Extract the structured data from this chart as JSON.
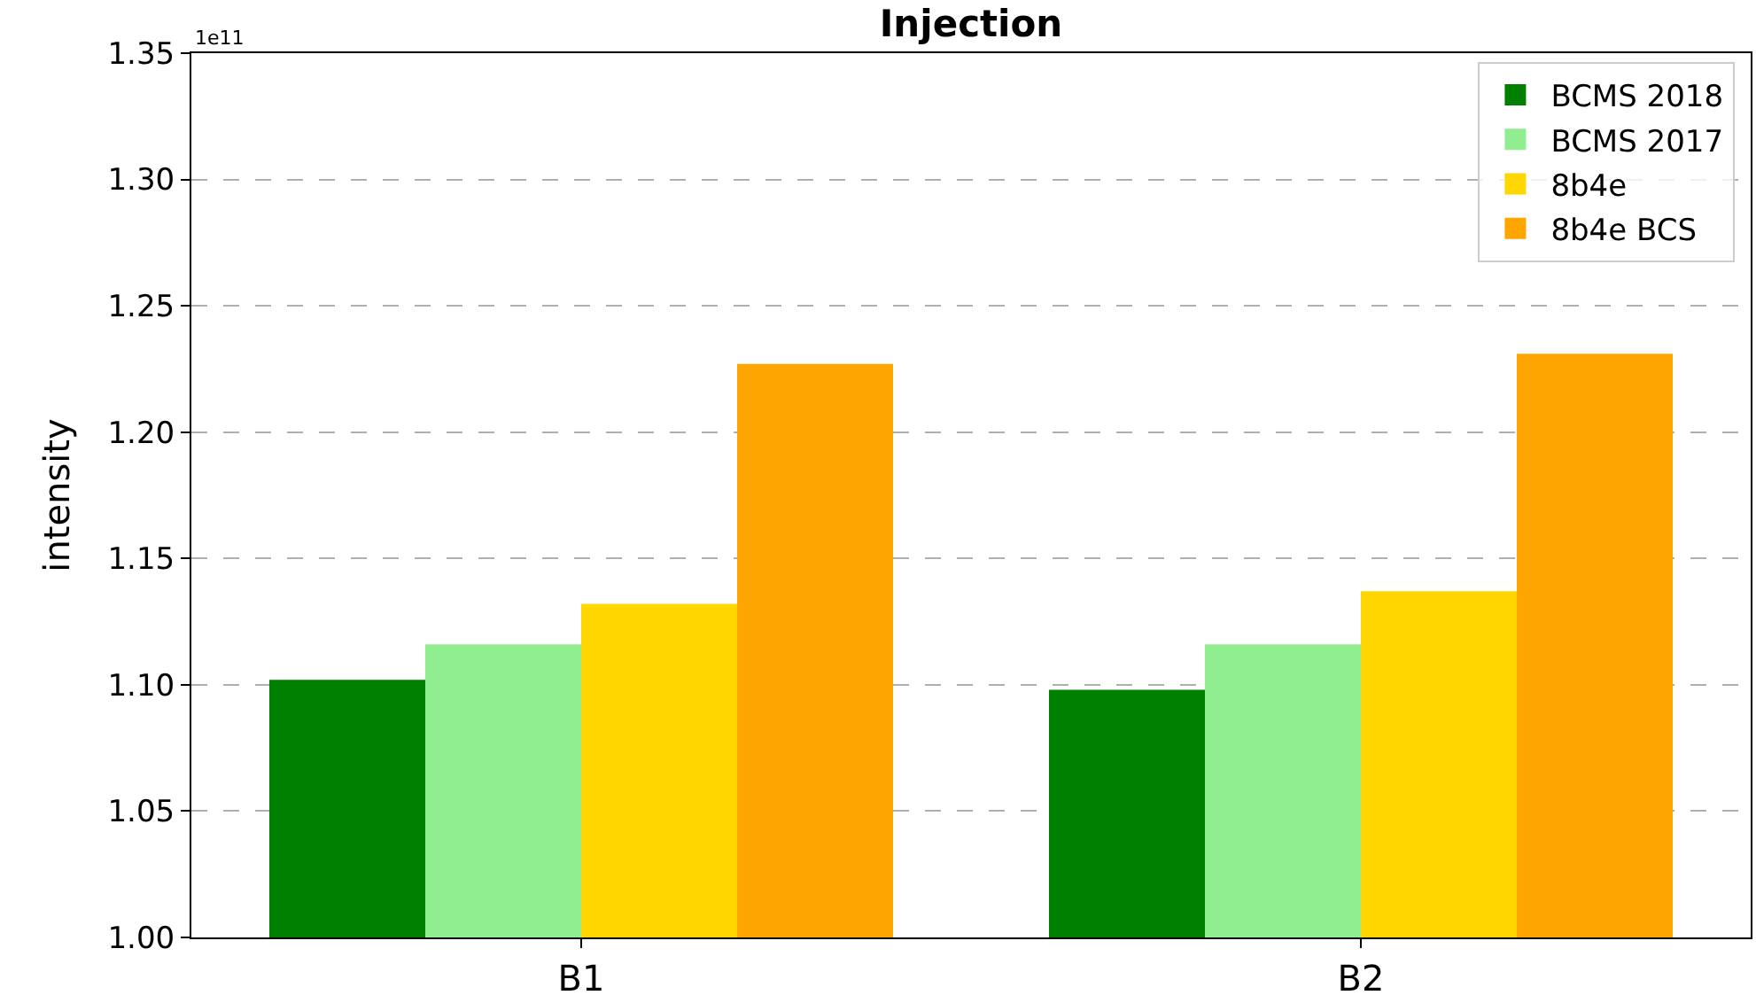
{
  "chart_data": {
    "type": "bar",
    "title": "Injection",
    "ylabel": "intensity",
    "categories": [
      "B1",
      "B2"
    ],
    "series": [
      {
        "name": "BCMS 2018",
        "color": "#008000",
        "values": [
          1.102,
          1.098
        ]
      },
      {
        "name": "BCMS 2017",
        "color": "#90ee90",
        "values": [
          1.116,
          1.116
        ]
      },
      {
        "name": "8b4e",
        "color": "#ffd700",
        "values": [
          1.132,
          1.137
        ]
      },
      {
        "name": "8b4e BCS",
        "color": "#ffa500",
        "values": [
          1.227,
          1.231
        ]
      }
    ],
    "ylim": [
      1.0,
      1.35
    ],
    "yticks": [
      {
        "value": 1.0,
        "label": "1.00"
      },
      {
        "value": 1.05,
        "label": "1.05"
      },
      {
        "value": 1.1,
        "label": "1.10"
      },
      {
        "value": 1.15,
        "label": "1.15"
      },
      {
        "value": 1.2,
        "label": "1.20"
      },
      {
        "value": 1.25,
        "label": "1.25"
      },
      {
        "value": 1.3,
        "label": "1.30"
      },
      {
        "value": 1.35,
        "label": "1.35"
      }
    ],
    "annotations": [
      "1e11"
    ],
    "grid": "y",
    "legend": "top right"
  }
}
